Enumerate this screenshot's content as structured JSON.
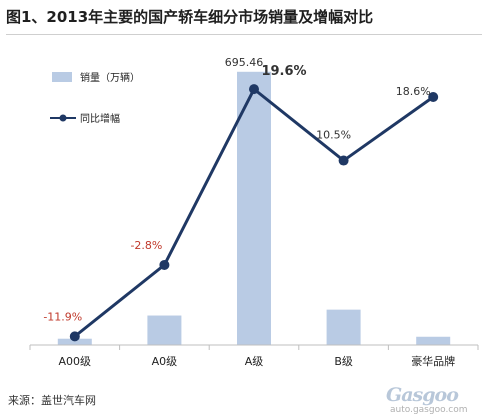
{
  "title": "图1、2013年主要的国产轿车细分市场销量及增幅对比",
  "source": "来源：盖世汽车网",
  "watermark": {
    "name": "Gasgoo",
    "url": "auto.gasgoo.com"
  },
  "colors": {
    "bar": "#b9cbe4",
    "line": "#1f3864",
    "negative_label": "#c0392b",
    "axis": "#bfbfbf"
  },
  "chart_data": {
    "type": "bar+line",
    "categories": [
      "A00级",
      "A0级",
      "A级",
      "B级",
      "豪华品牌"
    ],
    "series": [
      {
        "name": "销量（万辆）",
        "type": "bar",
        "axis": "left",
        "values": [
          16,
          75,
          695.46,
          90,
          21
        ],
        "value_labels": [
          "",
          "",
          "695.46",
          "",
          ""
        ]
      },
      {
        "name": "同比增幅",
        "type": "line",
        "axis": "right",
        "values": [
          -11.9,
          -2.8,
          19.6,
          10.5,
          18.6
        ],
        "value_labels": [
          "-11.9%",
          "-2.8%",
          "19.6%",
          "10.5%",
          "18.6%"
        ]
      }
    ],
    "ylim_left": [
      0,
      700
    ],
    "ylim_right": [
      -13,
      20
    ],
    "grid": false,
    "legend_placement": "top-left"
  }
}
